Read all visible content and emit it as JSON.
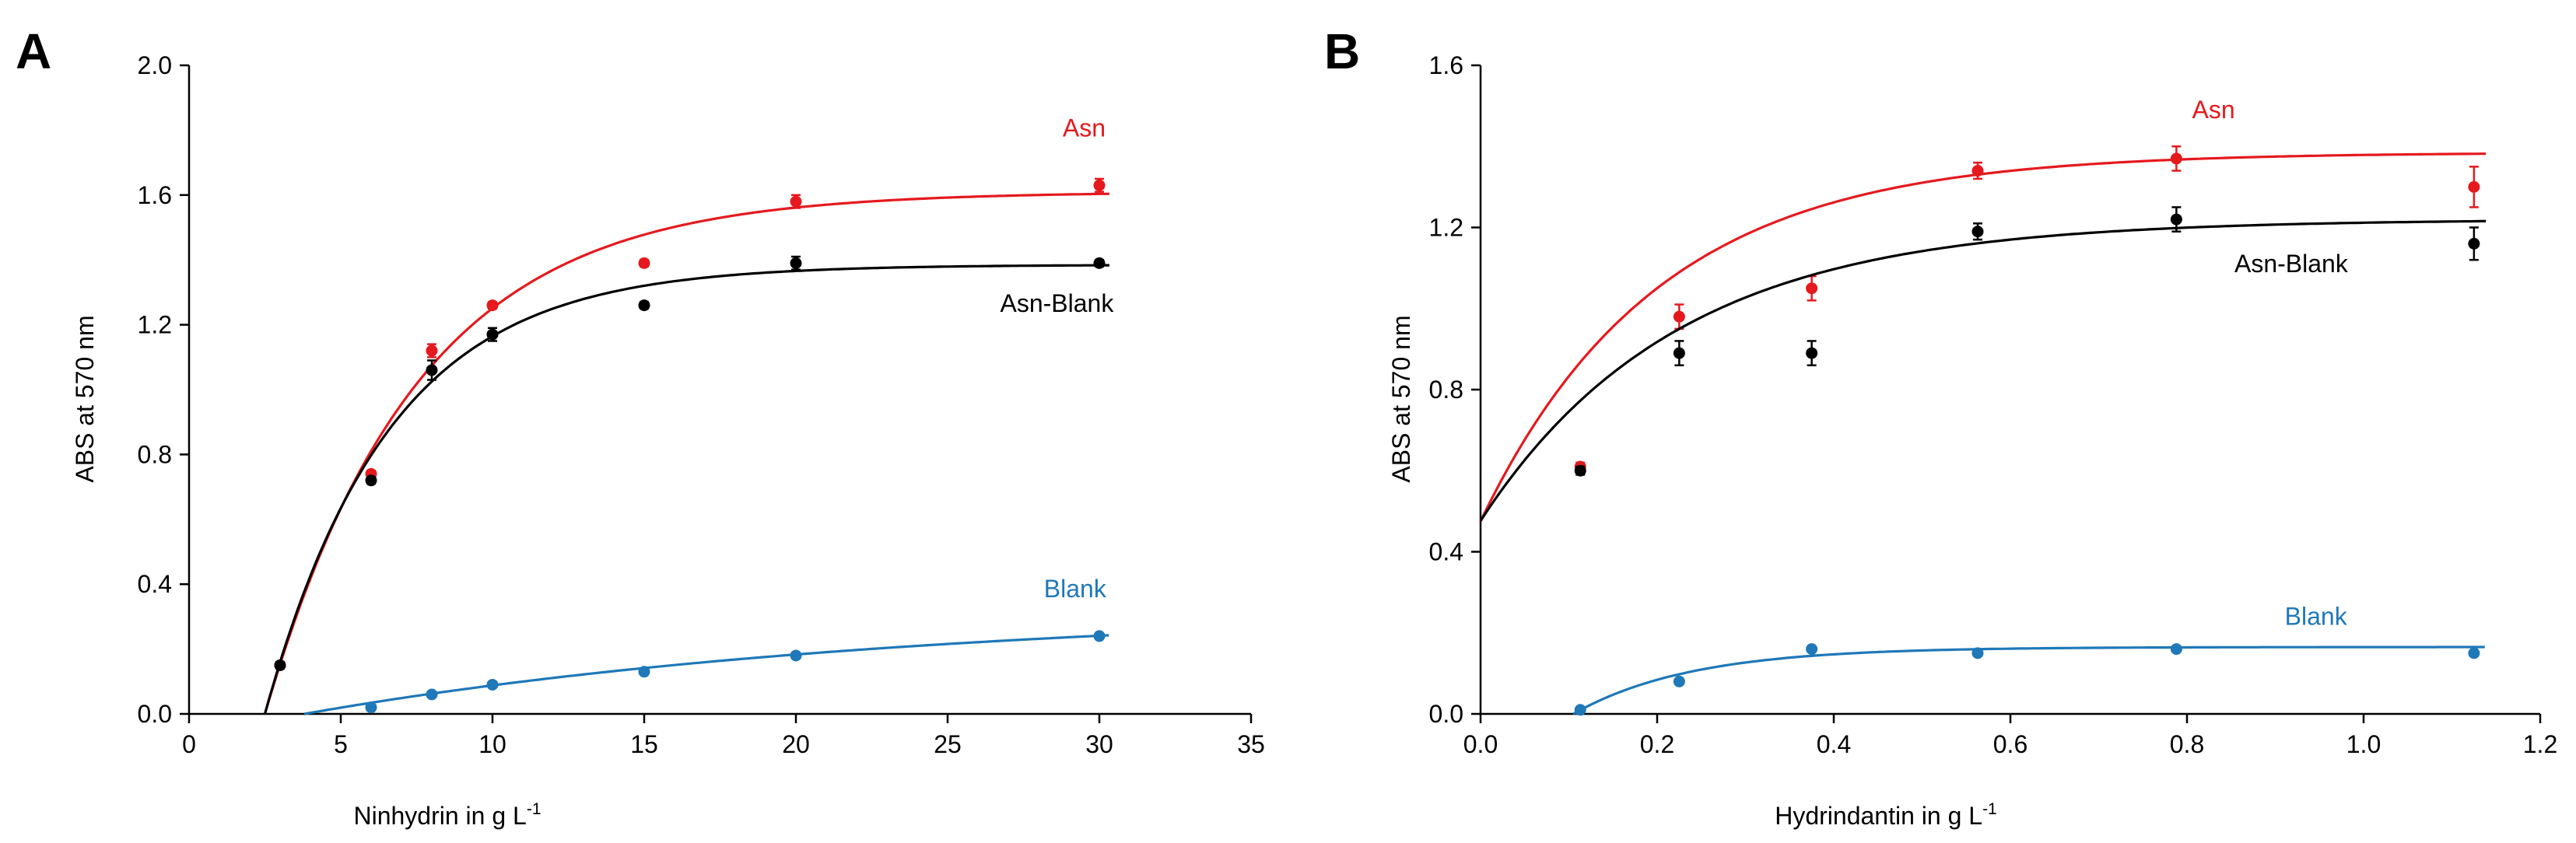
{
  "colors": {
    "Asn": "#e5191e",
    "Asn-Blank": "#000000",
    "Blank": "#1f78b8"
  },
  "chart_data": [
    {
      "type": "scatter",
      "panel_label": "A",
      "xlabel": "Ninhydrin in g L",
      "xlabel_sup": "-1",
      "ylabel": "ABS at 570 nm",
      "xlim": [
        0,
        35
      ],
      "ylim": [
        0,
        2.0
      ],
      "x_ticks": [
        "0",
        "5",
        "10",
        "15",
        "20",
        "25",
        "30",
        "35"
      ],
      "y_ticks": [
        "0.0",
        "0.4",
        "0.8",
        "1.2",
        "1.6",
        "2.0"
      ],
      "series": [
        {
          "name": "Asn",
          "color_key": "Asn",
          "points": [
            [
              3,
              0.15
            ],
            [
              6,
              0.74
            ],
            [
              8,
              1.12
            ],
            [
              10,
              1.26
            ],
            [
              15,
              1.39
            ],
            [
              20,
              1.58
            ],
            [
              30,
              1.63
            ]
          ],
          "errors": [
            0.01,
            0.01,
            0.02,
            0.01,
            0.01,
            0.02,
            0.02
          ],
          "fit": {
            "model": "exp",
            "a": 1.61,
            "x0": 2.5,
            "k": 0.2
          }
        },
        {
          "name": "Asn-Blank",
          "color_key": "Asn-Blank",
          "points": [
            [
              3,
              0.15
            ],
            [
              6,
              0.72
            ],
            [
              8,
              1.06
            ],
            [
              10,
              1.17
            ],
            [
              15,
              1.26
            ],
            [
              20,
              1.39
            ],
            [
              30,
              1.39
            ]
          ],
          "errors": [
            0.01,
            0.01,
            0.03,
            0.02,
            0.01,
            0.02,
            0.01
          ],
          "fit": {
            "model": "exp",
            "a": 1.385,
            "x0": 2.5,
            "k": 0.245
          }
        },
        {
          "name": "Blank",
          "color_key": "Blank",
          "points": [
            [
              6,
              0.02
            ],
            [
              8,
              0.06
            ],
            [
              10,
              0.09
            ],
            [
              15,
              0.13
            ],
            [
              20,
              0.18
            ],
            [
              30,
              0.24
            ]
          ],
          "errors": [
            0,
            0,
            0,
            0,
            0,
            0
          ],
          "fit": {
            "model": "exp",
            "a": 0.33,
            "x0": 3.8,
            "k": 0.05
          }
        }
      ],
      "annotations": [
        {
          "text": "Asn",
          "color_key": "Asn",
          "x": 29.5,
          "y": 1.78
        },
        {
          "text": "Asn-Blank",
          "color_key": "Asn-Blank",
          "x": 28.6,
          "y": 1.24
        },
        {
          "text": "Blank",
          "color_key": "Blank",
          "x": 29.2,
          "y": 0.36
        }
      ]
    },
    {
      "type": "scatter",
      "panel_label": "B",
      "xlabel": "Hydrindantin in g L",
      "xlabel_sup": "-1",
      "ylabel": "ABS at 570 nm",
      "xlim": [
        0,
        1.2
      ],
      "ylim": [
        0,
        1.6
      ],
      "x_ticks": [
        "0.0",
        "0.2",
        "0.4",
        "0.6",
        "0.8",
        "1.0",
        "1.2"
      ],
      "y_ticks": [
        "0.0",
        "0.4",
        "0.8",
        "1.2",
        "1.6"
      ],
      "series": [
        {
          "name": "Asn",
          "color_key": "Asn",
          "points": [
            [
              0.113,
              0.61
            ],
            [
              0.225,
              0.98
            ],
            [
              0.375,
              1.05
            ],
            [
              0.563,
              1.34
            ],
            [
              0.788,
              1.37
            ],
            [
              1.125,
              1.3
            ]
          ],
          "errors": [
            0.01,
            0.03,
            0.03,
            0.02,
            0.03,
            0.05
          ],
          "fit": {
            "model": "exp",
            "a": 1.385,
            "x0": -0.084,
            "k": 5.0
          }
        },
        {
          "name": "Asn-Blank",
          "color_key": "Asn-Blank",
          "points": [
            [
              0.113,
              0.6
            ],
            [
              0.225,
              0.89
            ],
            [
              0.375,
              0.89
            ],
            [
              0.563,
              1.19
            ],
            [
              0.788,
              1.22
            ],
            [
              1.125,
              1.16
            ]
          ],
          "errors": [
            0.01,
            0.03,
            0.03,
            0.02,
            0.03,
            0.04
          ],
          "fit": {
            "model": "exp",
            "a": 1.22,
            "x0": -0.11,
            "k": 4.5
          }
        },
        {
          "name": "Blank",
          "color_key": "Blank",
          "points": [
            [
              0.113,
              0.01
            ],
            [
              0.225,
              0.08
            ],
            [
              0.375,
              0.16
            ],
            [
              0.563,
              0.15
            ],
            [
              0.788,
              0.16
            ],
            [
              1.125,
              0.15
            ]
          ],
          "errors": [
            0,
            0,
            0,
            0,
            0,
            0
          ],
          "fit": {
            "model": "exp",
            "a": 0.165,
            "x0": 0.105,
            "k": 7.5
          }
        }
      ],
      "annotations": [
        {
          "text": "Asn",
          "color_key": "Asn",
          "x": 0.83,
          "y": 1.47
        },
        {
          "text": "Asn-Blank",
          "color_key": "Asn-Blank",
          "x": 0.918,
          "y": 1.09
        },
        {
          "text": "Blank",
          "color_key": "Blank",
          "x": 0.946,
          "y": 0.22
        }
      ]
    }
  ]
}
